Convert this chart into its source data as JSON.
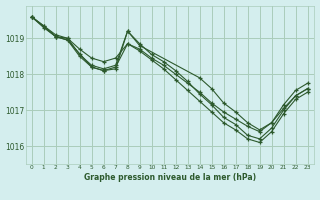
{
  "title": "Graphe pression niveau de la mer (hPa)",
  "bg_color": "#d4eeee",
  "grid_color": "#aaccbb",
  "line_color": "#2d5a2d",
  "xlim": [
    -0.5,
    23.5
  ],
  "ylim": [
    1015.5,
    1019.9
  ],
  "yticks": [
    1016,
    1017,
    1018,
    1019
  ],
  "xticks": [
    0,
    1,
    2,
    3,
    4,
    5,
    6,
    7,
    8,
    9,
    10,
    11,
    12,
    13,
    14,
    15,
    16,
    17,
    18,
    19,
    20,
    21,
    22,
    23
  ],
  "line1_x": [
    0,
    1,
    2,
    3,
    4,
    5,
    6,
    7,
    8,
    9,
    10,
    11,
    12,
    13,
    14,
    15,
    16,
    17,
    18,
    19,
    20,
    21,
    22,
    23
  ],
  "line1_y": [
    1019.6,
    1019.35,
    1019.05,
    1019.0,
    1018.55,
    1018.25,
    1018.15,
    1018.25,
    1019.2,
    1018.85,
    1018.55,
    1018.35,
    1018.1,
    1017.8,
    1017.45,
    1017.15,
    1016.8,
    1016.6,
    1016.3,
    1016.2,
    1016.5,
    1017.0,
    1017.4,
    1017.6
  ],
  "line2_x": [
    0,
    2,
    3,
    5,
    6,
    7,
    8,
    9,
    14,
    15,
    16,
    17,
    18,
    19,
    20,
    21,
    22,
    23
  ],
  "line2_y": [
    1019.6,
    1019.05,
    1018.95,
    1018.2,
    1018.1,
    1018.15,
    1019.2,
    1018.8,
    1017.9,
    1017.6,
    1017.2,
    1016.95,
    1016.65,
    1016.45,
    1016.65,
    1017.05,
    1017.4,
    1017.6
  ],
  "line3_x": [
    0,
    1,
    2,
    3,
    4,
    5,
    6,
    7,
    8,
    9,
    10,
    11,
    12,
    13,
    14,
    15,
    16,
    17,
    18,
    19,
    20,
    21,
    22,
    23
  ],
  "line3_y": [
    1019.6,
    1019.3,
    1019.05,
    1018.95,
    1018.5,
    1018.2,
    1018.1,
    1018.2,
    1018.85,
    1018.65,
    1018.4,
    1018.15,
    1017.85,
    1017.55,
    1017.25,
    1016.95,
    1016.65,
    1016.45,
    1016.2,
    1016.1,
    1016.4,
    1016.9,
    1017.3,
    1017.5
  ],
  "line4_x": [
    0,
    1,
    2,
    3,
    4,
    5,
    6,
    7,
    8,
    9,
    10,
    11,
    12,
    13,
    14,
    15,
    16,
    17,
    18,
    19,
    20,
    21,
    22,
    23
  ],
  "line4_y": [
    1019.6,
    1019.35,
    1019.1,
    1019.0,
    1018.7,
    1018.45,
    1018.35,
    1018.45,
    1018.85,
    1018.7,
    1018.45,
    1018.25,
    1018.0,
    1017.75,
    1017.5,
    1017.2,
    1016.95,
    1016.75,
    1016.55,
    1016.4,
    1016.65,
    1017.15,
    1017.55,
    1017.75
  ]
}
